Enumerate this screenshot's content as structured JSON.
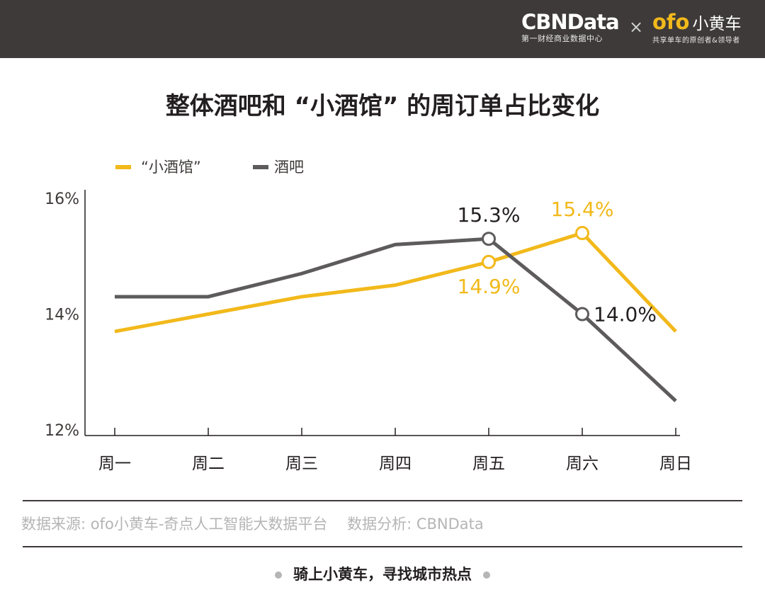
{
  "header": {
    "cbn_logo": "CBNData",
    "cbn_sub": "第一财经商业数据中心",
    "cross": "×",
    "ofo_logo": "ofo",
    "ofo_cn": "小黄车",
    "ofo_sub": "共享单车的原创者&领导者"
  },
  "colors": {
    "yellow": "#f2b91b",
    "gray": "#5d5b5c",
    "header_bg": "#3e3a39"
  },
  "chart_data": {
    "type": "line",
    "title": "整体酒吧和 “小酒馆” 的周订单占比变化",
    "categories": [
      "周一",
      "周二",
      "周三",
      "周四",
      "周五",
      "周六",
      "周日"
    ],
    "series": [
      {
        "name": "“小酒馆”",
        "color": "#f2b91b",
        "values": [
          13.7,
          14.0,
          14.3,
          14.5,
          14.9,
          15.4,
          13.7
        ]
      },
      {
        "name": "酒吧",
        "color": "#5d5b5c",
        "values": [
          14.3,
          14.3,
          14.7,
          15.2,
          15.3,
          14.0,
          12.5
        ]
      }
    ],
    "yticks": [
      "12%",
      "14%",
      "16%"
    ],
    "ylim": [
      12,
      16
    ],
    "annotations": [
      {
        "series": 1,
        "index": 4,
        "text": "15.3%"
      },
      {
        "series": 0,
        "index": 5,
        "text": "15.4%"
      },
      {
        "series": 0,
        "index": 4,
        "text": "14.9%"
      },
      {
        "series": 1,
        "index": 5,
        "text": "14.0%"
      }
    ],
    "grid": false,
    "legend": "top-left"
  },
  "source_text": "数据来源: ofo小黄车-奇点人工智能大数据平台　 数据分析: CBNData",
  "footer_text": "骑上小黄车，寻找城市热点"
}
